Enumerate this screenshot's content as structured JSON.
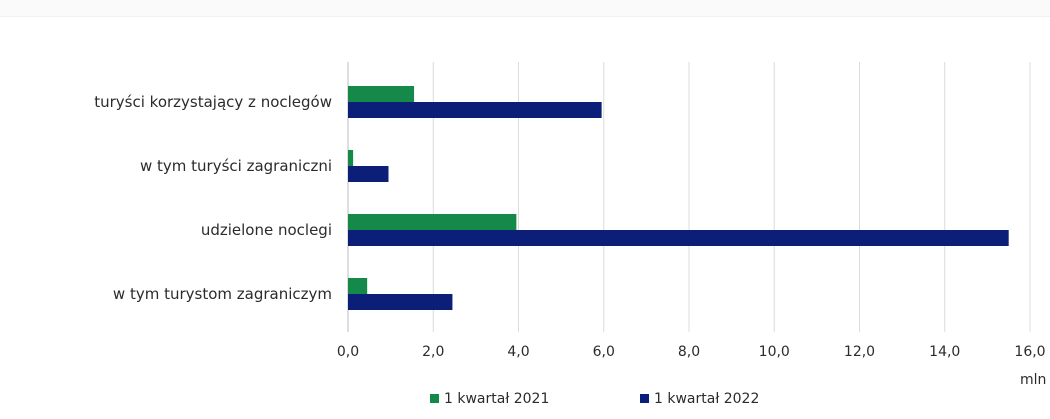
{
  "chart_data": {
    "type": "bar",
    "orientation": "horizontal",
    "categories": [
      "turyści korzystający z noclegów",
      "w tym turyści zagraniczni",
      "udzielone noclegi",
      "w tym turystom zagraniczym"
    ],
    "series": [
      {
        "name": "1 kwartał 2021",
        "color": "#14894a",
        "values": [
          1.55,
          0.12,
          3.95,
          0.45
        ]
      },
      {
        "name": "1 kwartał 2022",
        "color": "#0b1f78",
        "values": [
          5.95,
          0.95,
          15.5,
          2.45
        ]
      }
    ],
    "xlim": [
      0,
      16
    ],
    "xticks": [
      0,
      2,
      4,
      6,
      8,
      10,
      12,
      14,
      16
    ],
    "xtick_labels": [
      "0,0",
      "2,0",
      "4,0",
      "6,0",
      "8,0",
      "10,0",
      "12,0",
      "14,0",
      "16,0"
    ],
    "xunit": "mln",
    "grid": true,
    "legend_position": "bottom"
  }
}
